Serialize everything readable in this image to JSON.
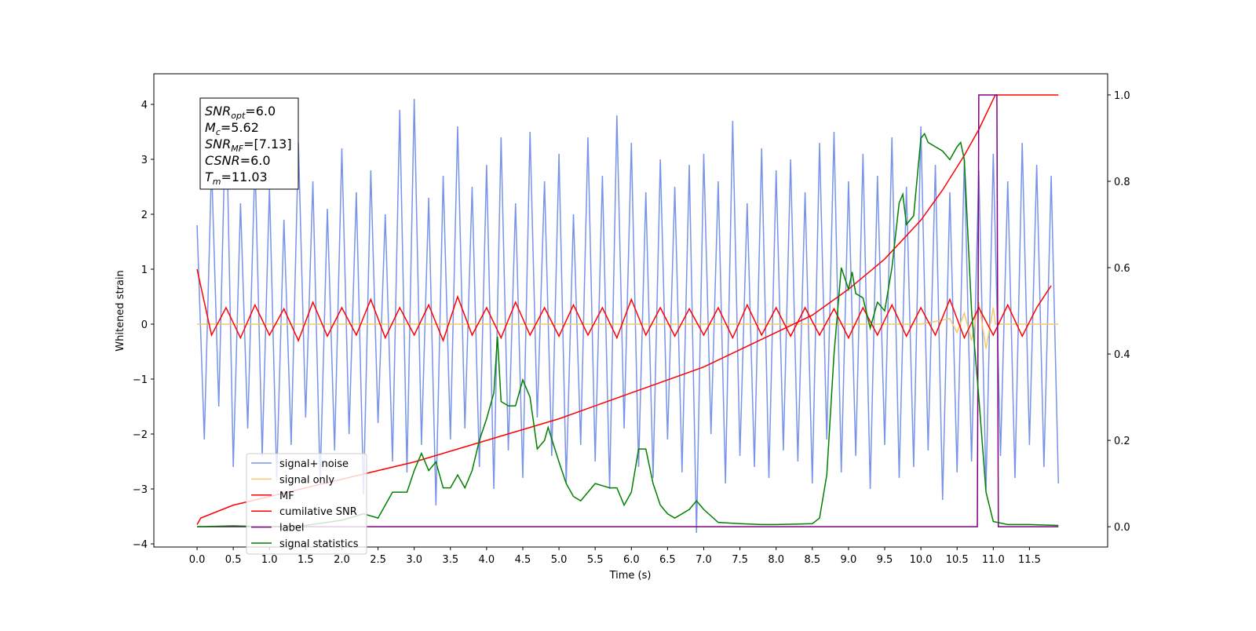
{
  "chart_data": {
    "type": "line",
    "xlabel": "Time (s)",
    "ylabel": "Whitened strain",
    "xlim": [
      -0.597,
      12.58
    ],
    "ylim": [
      -4.057,
      4.557
    ],
    "y2lim": [
      -0.047,
      1.049
    ],
    "xticks": [
      {
        "value": 0,
        "label": "0.0"
      },
      0.5,
      {
        "value": 1,
        "label": "1.0"
      },
      1.5,
      {
        "value": 2,
        "label": "2.0"
      },
      2.5,
      {
        "value": 3,
        "label": "3.0"
      },
      3.5,
      {
        "value": 4,
        "label": "4.0"
      },
      4.5,
      {
        "value": 5,
        "label": "5.0"
      },
      5.5,
      {
        "value": 6,
        "label": "6.0"
      },
      6.5,
      {
        "value": 7,
        "label": "7.0"
      },
      7.5,
      {
        "value": 8,
        "label": "8.0"
      },
      8.5,
      {
        "value": 9,
        "label": "9.0"
      },
      9.5,
      {
        "value": 10,
        "label": "10.0"
      },
      10.5,
      {
        "value": 11,
        "label": "11.0"
      },
      11.5
    ],
    "yticks": [
      {
        "value": -4,
        "label": "−4"
      },
      {
        "value": -3,
        "label": "−3"
      },
      {
        "value": -2,
        "label": "−2"
      },
      {
        "value": -1,
        "label": "−1"
      },
      0,
      1,
      2,
      3,
      4
    ],
    "y2ticks": [
      {
        "value": 0,
        "label": "0.0"
      },
      0.2,
      0.4,
      0.6,
      0.8,
      {
        "value": 1,
        "label": "1.0"
      }
    ],
    "legend": "lower left",
    "annotations": [
      {
        "name": "SNR",
        "sub": "opt",
        "text": "=6.0"
      },
      {
        "name": "M",
        "sub": "c",
        "text": "=5.62"
      },
      {
        "name": "SNR",
        "sub": "MF",
        "text": "=[7.13]"
      },
      {
        "name": "CSNR",
        "sub": "",
        "text": "=6.0"
      },
      {
        "name": "T",
        "sub": "m",
        "text": "=11.03"
      }
    ],
    "series": [
      {
        "name": "signal+ noise",
        "color": "#7893e8",
        "x": [
          0,
          0.1,
          0.2,
          0.3,
          0.4,
          0.5,
          0.6,
          0.7,
          0.8,
          0.9,
          1,
          1.1,
          1.2,
          1.3,
          1.4,
          1.5,
          1.6,
          1.7,
          1.8,
          1.9,
          2,
          2.1,
          2.2,
          2.3,
          2.4,
          2.5,
          2.6,
          2.7,
          2.8,
          2.9,
          3,
          3.1,
          3.2,
          3.3,
          3.4,
          3.5,
          3.6,
          3.7,
          3.8,
          3.9,
          4,
          4.1,
          4.2,
          4.3,
          4.4,
          4.5,
          4.6,
          4.7,
          4.8,
          4.9,
          5,
          5.1,
          5.2,
          5.3,
          5.4,
          5.5,
          5.6,
          5.7,
          5.8,
          5.9,
          6,
          6.1,
          6.2,
          6.3,
          6.4,
          6.5,
          6.6,
          6.7,
          6.8,
          6.9,
          7,
          7.1,
          7.2,
          7.3,
          7.4,
          7.5,
          7.6,
          7.7,
          7.8,
          7.9,
          8,
          8.1,
          8.2,
          8.3,
          8.4,
          8.5,
          8.6,
          8.7,
          8.8,
          8.9,
          9,
          9.1,
          9.2,
          9.3,
          9.4,
          9.5,
          9.6,
          9.7,
          9.8,
          9.9,
          10,
          10.1,
          10.2,
          10.3,
          10.4,
          10.5,
          10.6,
          10.7,
          10.8,
          10.9,
          11,
          11.1,
          11.2,
          11.3,
          11.4,
          11.5,
          11.6,
          11.7,
          11.8,
          11.9
        ],
        "values": [
          1.8,
          -2.1,
          2.9,
          -1.5,
          4.1,
          -2.6,
          2.2,
          -1.9,
          3.0,
          -2.4,
          2.5,
          -2.8,
          1.9,
          -2.2,
          3.3,
          -1.7,
          2.6,
          -2.9,
          2.1,
          -2.3,
          3.2,
          -2.0,
          2.4,
          -3.1,
          2.8,
          -1.8,
          2.0,
          -2.5,
          3.9,
          -2.7,
          4.1,
          -2.2,
          2.3,
          -3.3,
          2.7,
          -2.1,
          3.6,
          -1.9,
          2.5,
          -2.6,
          2.9,
          -3.0,
          3.4,
          -2.3,
          2.2,
          -2.8,
          3.5,
          -1.7,
          2.6,
          -2.4,
          3.1,
          -2.9,
          2.0,
          -2.2,
          3.4,
          -2.5,
          2.7,
          -3.0,
          3.8,
          -1.9,
          3.3,
          -2.6,
          2.4,
          -2.8,
          3.0,
          -2.1,
          2.5,
          -2.7,
          2.9,
          -3.8,
          3.1,
          -2.0,
          2.6,
          -2.9,
          3.7,
          -2.4,
          2.2,
          -2.6,
          3.2,
          -2.8,
          2.8,
          -2.3,
          3.0,
          -2.5,
          2.4,
          -2.9,
          3.3,
          -2.1,
          3.5,
          -2.7,
          2.6,
          -2.4,
          3.1,
          -3.0,
          2.7,
          -2.2,
          3.4,
          -2.8,
          2.5,
          -2.6,
          3.6,
          -2.3,
          2.9,
          -3.2,
          2.4,
          -2.7,
          3.0,
          -2.5,
          2.8,
          -3.0,
          3.1,
          -2.4,
          2.6,
          -2.8,
          3.3,
          -2.2,
          2.9,
          -2.6,
          2.7,
          -2.9
        ]
      },
      {
        "name": "signal only",
        "color": "#f5c76e",
        "x": [
          0,
          10.0,
          10.4,
          10.5,
          10.6,
          10.7,
          10.8,
          10.9,
          11.0,
          11.03,
          11.9
        ],
        "values": [
          0,
          0,
          0.1,
          -0.15,
          0.2,
          -0.3,
          0.4,
          -0.45,
          0.3,
          0,
          0
        ]
      },
      {
        "name": "MF",
        "color": "#ff0000",
        "x": [
          0,
          0.2,
          0.4,
          0.6,
          0.8,
          1,
          1.2,
          1.4,
          1.6,
          1.8,
          2,
          2.2,
          2.4,
          2.6,
          2.8,
          3,
          3.2,
          3.4,
          3.6,
          3.8,
          4,
          4.2,
          4.4,
          4.6,
          4.8,
          5,
          5.2,
          5.4,
          5.6,
          5.8,
          6,
          6.2,
          6.4,
          6.6,
          6.8,
          7,
          7.2,
          7.4,
          7.6,
          7.8,
          8,
          8.2,
          8.4,
          8.6,
          8.8,
          9,
          9.2,
          9.4,
          9.6,
          9.8,
          10,
          10.2,
          10.4,
          10.6,
          10.8,
          11,
          11.2,
          11.4,
          11.6,
          11.8
        ],
        "values": [
          1.0,
          -0.2,
          0.3,
          -0.25,
          0.35,
          -0.2,
          0.28,
          -0.3,
          0.4,
          -0.22,
          0.3,
          -0.2,
          0.45,
          -0.25,
          0.3,
          -0.2,
          0.35,
          -0.3,
          0.5,
          -0.2,
          0.3,
          -0.25,
          0.4,
          -0.2,
          0.3,
          -0.22,
          0.35,
          -0.2,
          0.3,
          -0.25,
          0.45,
          -0.2,
          0.3,
          -0.22,
          0.28,
          -0.2,
          0.3,
          -0.25,
          0.35,
          -0.2,
          0.3,
          -0.22,
          0.3,
          -0.2,
          0.28,
          -0.25,
          0.3,
          -0.2,
          0.35,
          -0.22,
          0.3,
          -0.2,
          0.45,
          -0.25,
          0.3,
          -0.2,
          0.35,
          -0.22,
          0.3,
          0.7
        ]
      },
      {
        "name": "cumilative SNR",
        "color": "#ff0000",
        "axis": "y2",
        "x": [
          0,
          0.05,
          0.5,
          1,
          2,
          3,
          4,
          5,
          6,
          7,
          7.5,
          8,
          8.5,
          9,
          9.5,
          10,
          10.3,
          10.6,
          10.8,
          11,
          11.03,
          11.9
        ],
        "values": [
          0.005,
          0.02,
          0.05,
          0.07,
          0.11,
          0.15,
          0.2,
          0.25,
          0.31,
          0.37,
          0.41,
          0.45,
          0.49,
          0.55,
          0.62,
          0.71,
          0.78,
          0.86,
          0.92,
          0.99,
          1.0,
          1.0
        ]
      },
      {
        "name": "label",
        "color": "#800080",
        "axis": "y2",
        "x": [
          0,
          10.78,
          10.8,
          11.05,
          11.07,
          11.9
        ],
        "values": [
          0,
          0,
          1,
          1,
          0,
          0
        ]
      },
      {
        "name": "signal statistics",
        "color": "#008000",
        "axis": "y2",
        "x": [
          0,
          0.5,
          1,
          1.5,
          2,
          2.3,
          2.5,
          2.7,
          2.9,
          3,
          3.1,
          3.2,
          3.3,
          3.4,
          3.5,
          3.6,
          3.7,
          3.8,
          3.9,
          4,
          4.1,
          4.15,
          4.2,
          4.3,
          4.4,
          4.5,
          4.6,
          4.7,
          4.8,
          4.85,
          5,
          5.1,
          5.2,
          5.3,
          5.4,
          5.5,
          5.7,
          5.8,
          5.9,
          6,
          6.1,
          6.2,
          6.3,
          6.4,
          6.5,
          6.6,
          6.8,
          6.9,
          7,
          7.2,
          7.5,
          7.8,
          8,
          8.5,
          8.6,
          8.7,
          8.8,
          8.9,
          9,
          9.05,
          9.1,
          9.2,
          9.3,
          9.4,
          9.5,
          9.6,
          9.7,
          9.75,
          9.8,
          9.9,
          10,
          10.05,
          10.1,
          10.2,
          10.3,
          10.4,
          10.5,
          10.55,
          10.6,
          10.7,
          10.8,
          10.9,
          11,
          11.2,
          11.5,
          11.9
        ],
        "values": [
          0,
          0.002,
          0,
          0.003,
          0.015,
          0.03,
          0.02,
          0.08,
          0.08,
          0.13,
          0.17,
          0.13,
          0.15,
          0.09,
          0.09,
          0.12,
          0.09,
          0.13,
          0.2,
          0.25,
          0.31,
          0.44,
          0.29,
          0.28,
          0.28,
          0.34,
          0.3,
          0.18,
          0.2,
          0.23,
          0.15,
          0.1,
          0.07,
          0.06,
          0.08,
          0.1,
          0.09,
          0.09,
          0.05,
          0.08,
          0.18,
          0.18,
          0.1,
          0.05,
          0.03,
          0.02,
          0.04,
          0.06,
          0.04,
          0.01,
          0.007,
          0.005,
          0.005,
          0.007,
          0.02,
          0.12,
          0.4,
          0.6,
          0.55,
          0.59,
          0.54,
          0.53,
          0.46,
          0.52,
          0.5,
          0.6,
          0.75,
          0.77,
          0.7,
          0.72,
          0.9,
          0.91,
          0.89,
          0.88,
          0.87,
          0.85,
          0.88,
          0.89,
          0.85,
          0.5,
          0.3,
          0.08,
          0.012,
          0.005,
          0.005,
          0.003
        ]
      }
    ]
  }
}
